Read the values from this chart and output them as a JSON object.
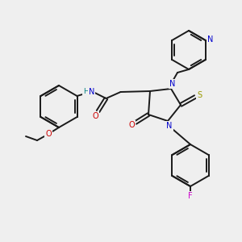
{
  "background_color": "#efefef",
  "bond_color": "#1a1a1a",
  "atom_colors": {
    "N": "#0000cc",
    "O": "#cc0000",
    "S": "#999900",
    "F": "#cc00cc",
    "H_amide": "#008080",
    "N_pyridine": "#0000cc"
  },
  "figsize": [
    3.0,
    3.0
  ],
  "dpi": 100
}
